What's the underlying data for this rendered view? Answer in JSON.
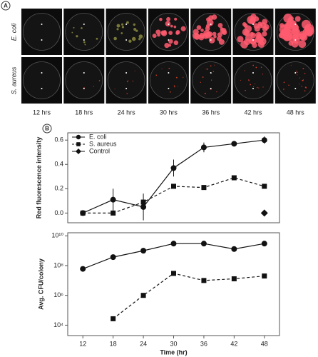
{
  "panel_a": {
    "label": "A",
    "rows": [
      "E. coli",
      "S. aureus"
    ],
    "times": [
      "12 hrs",
      "18 hrs",
      "24 hrs",
      "30 hrs",
      "36 hrs",
      "42 hrs",
      "48 hrs"
    ]
  },
  "panel_b_label": "B",
  "chart_data": [
    {
      "type": "line",
      "ylabel": "Red fluorescence intensity",
      "x": [
        12,
        18,
        24,
        30,
        36,
        42,
        48
      ],
      "xlim": [
        9,
        51
      ],
      "ylim": [
        -0.08,
        0.66
      ],
      "yticks": [
        {
          "value": 0,
          "label": "0.0"
        },
        {
          "value": 0.2,
          "label": "0.2"
        },
        {
          "value": 0.4,
          "label": "0.4"
        },
        {
          "value": 0.6,
          "label": "0.6"
        }
      ],
      "legend": "top-left",
      "series": [
        {
          "name": "E. coli",
          "color": "#111",
          "marker": "circle",
          "dash": false,
          "values": [
            0.0,
            0.11,
            0.05,
            0.37,
            0.54,
            0.57,
            0.6
          ],
          "errors": [
            0,
            0.09,
            0.11,
            0.07,
            0.04,
            0.01,
            0.03
          ]
        },
        {
          "name": "S. aureus",
          "color": "#111",
          "marker": "square",
          "dash": true,
          "values": [
            0.0,
            0.0,
            0.09,
            0.22,
            0.21,
            0.29,
            0.22
          ]
        },
        {
          "name": "Control",
          "color": "#111",
          "marker": "diamond",
          "dash": false,
          "values": [
            null,
            null,
            null,
            null,
            null,
            null,
            0.0
          ]
        }
      ]
    },
    {
      "type": "line",
      "ylabel": "Avg. CFU/colony",
      "xlabel": "Time (hr)",
      "x": [
        12,
        18,
        24,
        30,
        36,
        42,
        48
      ],
      "xlim": [
        9,
        51
      ],
      "ylim": [
        2000,
        16000000000
      ],
      "log": true,
      "xticks": [
        12,
        18,
        24,
        30,
        36,
        42,
        48
      ],
      "yticks": [
        {
          "value": 10000,
          "label": "10⁴"
        },
        {
          "value": 1000000,
          "label": "10⁶"
        },
        {
          "value": 100000000,
          "label": "10⁸"
        },
        {
          "value": 10000000000,
          "label": "10¹⁰"
        }
      ],
      "series": [
        {
          "color": "#111",
          "marker": "circle",
          "dash": false,
          "values": [
            60000000,
            370000000,
            1000000000,
            3000000000,
            3000000000,
            1300000000,
            3000000000
          ]
        },
        {
          "color": "#111",
          "marker": "square",
          "dash": true,
          "values": [
            null,
            27000,
            1000000,
            30000000,
            10000000,
            13000000,
            20000000
          ]
        }
      ]
    }
  ]
}
